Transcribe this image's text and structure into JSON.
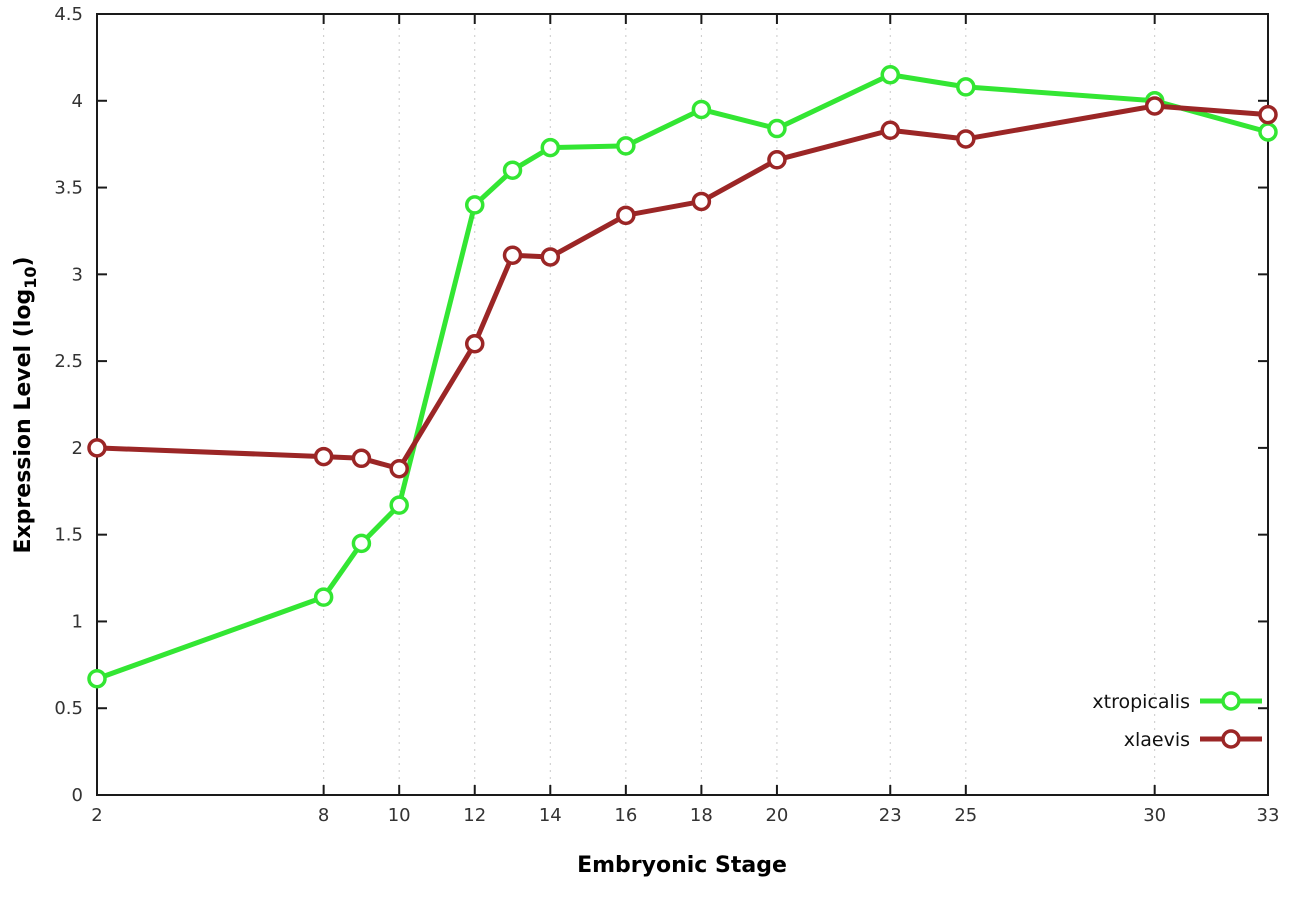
{
  "chart_data": {
    "type": "line",
    "title": "",
    "xlabel": "Embryonic Stage",
    "ylabel_main": "Expression Level (log",
    "ylabel_sub": "10",
    "ylabel_close": ")",
    "xlim": [
      2,
      33
    ],
    "ylim": [
      0,
      4.5
    ],
    "x_ticks": [
      2,
      8,
      10,
      12,
      14,
      16,
      18,
      20,
      23,
      25,
      30,
      33
    ],
    "y_ticks": [
      0,
      0.5,
      1,
      1.5,
      2,
      2.5,
      3,
      3.5,
      4,
      4.5
    ],
    "grid": "vertical-dotted",
    "legend_position": "bottom-right",
    "x": [
      2,
      8,
      9,
      10,
      12,
      13,
      14,
      16,
      18,
      20,
      23,
      25,
      30,
      33
    ],
    "series": [
      {
        "name": "xtropicalis",
        "color": "#33e633",
        "values": [
          0.67,
          1.14,
          1.45,
          1.67,
          3.4,
          3.6,
          3.73,
          3.74,
          3.95,
          3.84,
          4.15,
          4.08,
          4.0,
          3.82
        ]
      },
      {
        "name": "xlaevis",
        "color": "#9b2626",
        "values": [
          2.0,
          1.95,
          1.94,
          1.88,
          2.6,
          3.11,
          3.1,
          3.34,
          3.42,
          3.66,
          3.83,
          3.78,
          3.97,
          3.92
        ]
      }
    ]
  },
  "style": {
    "border_color": "#1a1a1a",
    "grid_color": "#c9c9c9",
    "marker_fill": "#ffffff"
  }
}
